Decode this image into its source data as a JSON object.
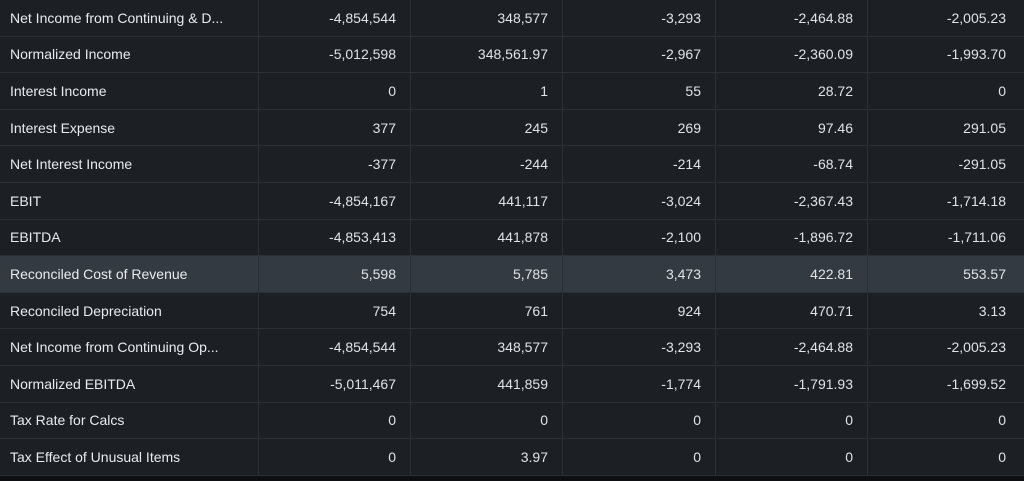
{
  "table": {
    "rows": [
      {
        "label": "Net Income from Continuing & D...",
        "values": [
          "-4,854,544",
          "348,577",
          "-3,293",
          "-2,464.88",
          "-2,005.23"
        ]
      },
      {
        "label": "Normalized Income",
        "values": [
          "-5,012,598",
          "348,561.97",
          "-2,967",
          "-2,360.09",
          "-1,993.70"
        ]
      },
      {
        "label": "Interest Income",
        "values": [
          "0",
          "1",
          "55",
          "28.72",
          "0"
        ]
      },
      {
        "label": "Interest Expense",
        "values": [
          "377",
          "245",
          "269",
          "97.46",
          "291.05"
        ]
      },
      {
        "label": "Net Interest Income",
        "values": [
          "-377",
          "-244",
          "-214",
          "-68.74",
          "-291.05"
        ]
      },
      {
        "label": "EBIT",
        "values": [
          "-4,854,167",
          "441,117",
          "-3,024",
          "-2,367.43",
          "-1,714.18"
        ]
      },
      {
        "label": "EBITDA",
        "values": [
          "-4,853,413",
          "441,878",
          "-2,100",
          "-1,896.72",
          "-1,711.06"
        ]
      },
      {
        "label": "Reconciled Cost of Revenue",
        "values": [
          "5,598",
          "5,785",
          "3,473",
          "422.81",
          "553.57"
        ],
        "highlighted": true
      },
      {
        "label": "Reconciled Depreciation",
        "values": [
          "754",
          "761",
          "924",
          "470.71",
          "3.13"
        ]
      },
      {
        "label": "Net Income from Continuing Op...",
        "values": [
          "-4,854,544",
          "348,577",
          "-3,293",
          "-2,464.88",
          "-2,005.23"
        ]
      },
      {
        "label": "Normalized EBITDA",
        "values": [
          "-5,011,467",
          "441,859",
          "-1,774",
          "-1,791.93",
          "-1,699.52"
        ]
      },
      {
        "label": "Tax Rate for Calcs",
        "values": [
          "0",
          "0",
          "0",
          "0",
          "0"
        ]
      },
      {
        "label": "Tax Effect of Unusual Items",
        "values": [
          "0",
          "3.97",
          "0",
          "0",
          "0"
        ]
      }
    ]
  },
  "colors": {
    "background": "#1c1f24",
    "highlight_row": "#343a41",
    "grid_line": "#2b2f36",
    "text": "#e6e8ec"
  }
}
